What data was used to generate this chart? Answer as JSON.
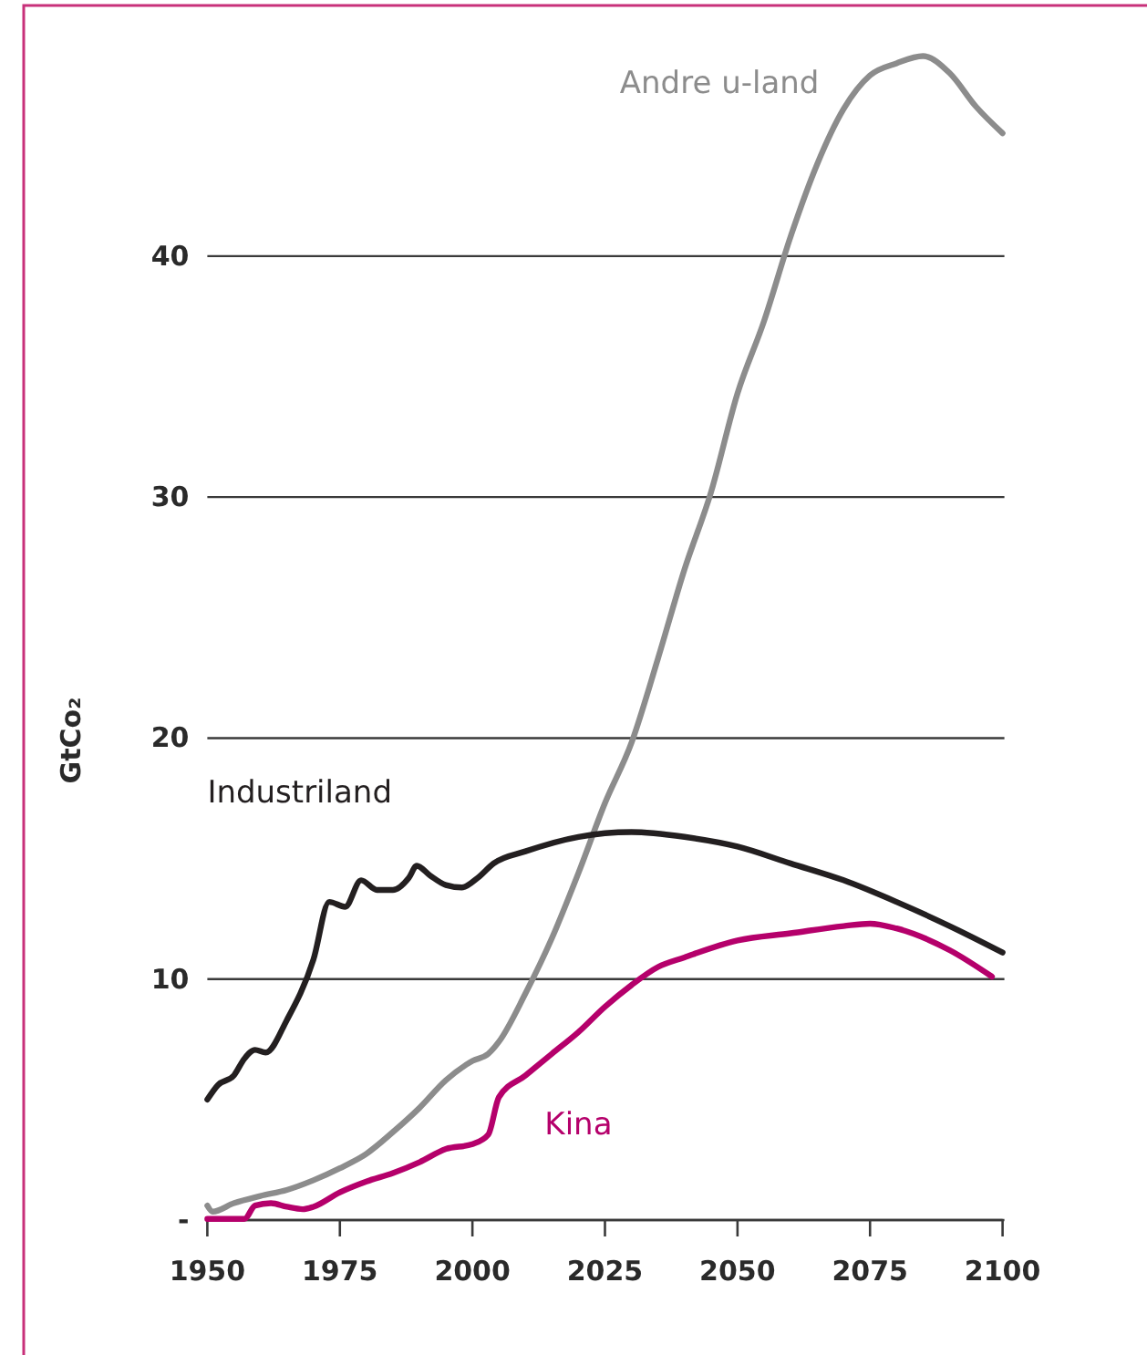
{
  "chart_data": {
    "type": "line",
    "ylabel": "GtCo₂",
    "xlim": [
      1950,
      2100
    ],
    "xticks": [
      1950,
      1975,
      2000,
      2025,
      2050,
      2075,
      2100
    ],
    "ylim": [
      0,
      50.4
    ],
    "yticks": [
      {
        "value": 0,
        "label": "-"
      },
      10,
      20,
      30,
      40
    ],
    "grid": "y",
    "legend": false,
    "marker": "none",
    "line_style": "solid",
    "series": [
      {
        "name": "Andre u-land",
        "color": "#8c8c8c",
        "x": [
          1950,
          1951,
          1955,
          1960,
          1965,
          1970,
          1975,
          1980,
          1985,
          1990,
          1995,
          2000,
          2003,
          2005,
          2010,
          2015,
          2020,
          2025,
          2030,
          2035,
          2040,
          2045,
          2050,
          2055,
          2060,
          2065,
          2070,
          2075,
          2080,
          2085,
          2090,
          2095,
          2100
        ],
        "values": [
          0.6,
          0.35,
          0.7,
          1.0,
          1.25,
          1.65,
          2.15,
          2.75,
          3.65,
          4.65,
          5.8,
          6.6,
          6.9,
          7.4,
          9.4,
          11.7,
          14.4,
          17.3,
          19.8,
          23.3,
          27,
          30.2,
          34.3,
          37.3,
          40.8,
          43.8,
          46.1,
          47.5,
          48.0,
          48.3,
          47.6,
          46.2,
          45.1
        ]
      },
      {
        "name": "Industriland",
        "color": "#231f20",
        "x": [
          1950,
          1952,
          1955,
          1957,
          1959,
          1961,
          1965,
          1970,
          1973,
          1976,
          1979,
          1982,
          1985,
          1988,
          1989.5,
          1992,
          1995,
          1998,
          2001,
          2004,
          2010,
          2020,
          2030,
          2040,
          2050,
          2060,
          2070,
          2080,
          2090,
          2100
        ],
        "values": [
          5.0,
          5.6,
          6.0,
          6.7,
          7.06,
          6.95,
          8.3,
          10.8,
          13.2,
          13.0,
          14.1,
          13.7,
          13.7,
          14.2,
          14.7,
          14.3,
          13.9,
          13.8,
          14.2,
          14.8,
          15.3,
          15.9,
          16.1,
          15.9,
          15.5,
          14.8,
          14.1,
          13.2,
          12.2,
          11.1
        ]
      },
      {
        "name": "Kina",
        "color": "#b5006b",
        "x": [
          1950,
          1957,
          1959,
          1962,
          1965,
          1968,
          1970,
          1975,
          1980,
          1985,
          1990,
          1995,
          2000,
          2003,
          2005,
          2010,
          2015,
          2020,
          2025,
          2030,
          2035,
          2040,
          2050,
          2060,
          2070,
          2075,
          2080,
          2090,
          2098
        ],
        "values": [
          0.05,
          0.05,
          0.6,
          0.7,
          0.55,
          0.45,
          0.55,
          1.15,
          1.6,
          1.95,
          2.4,
          2.95,
          3.15,
          3.55,
          5.1,
          6.0,
          6.9,
          7.8,
          8.85,
          9.75,
          10.5,
          10.9,
          11.6,
          11.9,
          12.2,
          12.3,
          12.1,
          11.2,
          10.1
        ]
      }
    ]
  }
}
